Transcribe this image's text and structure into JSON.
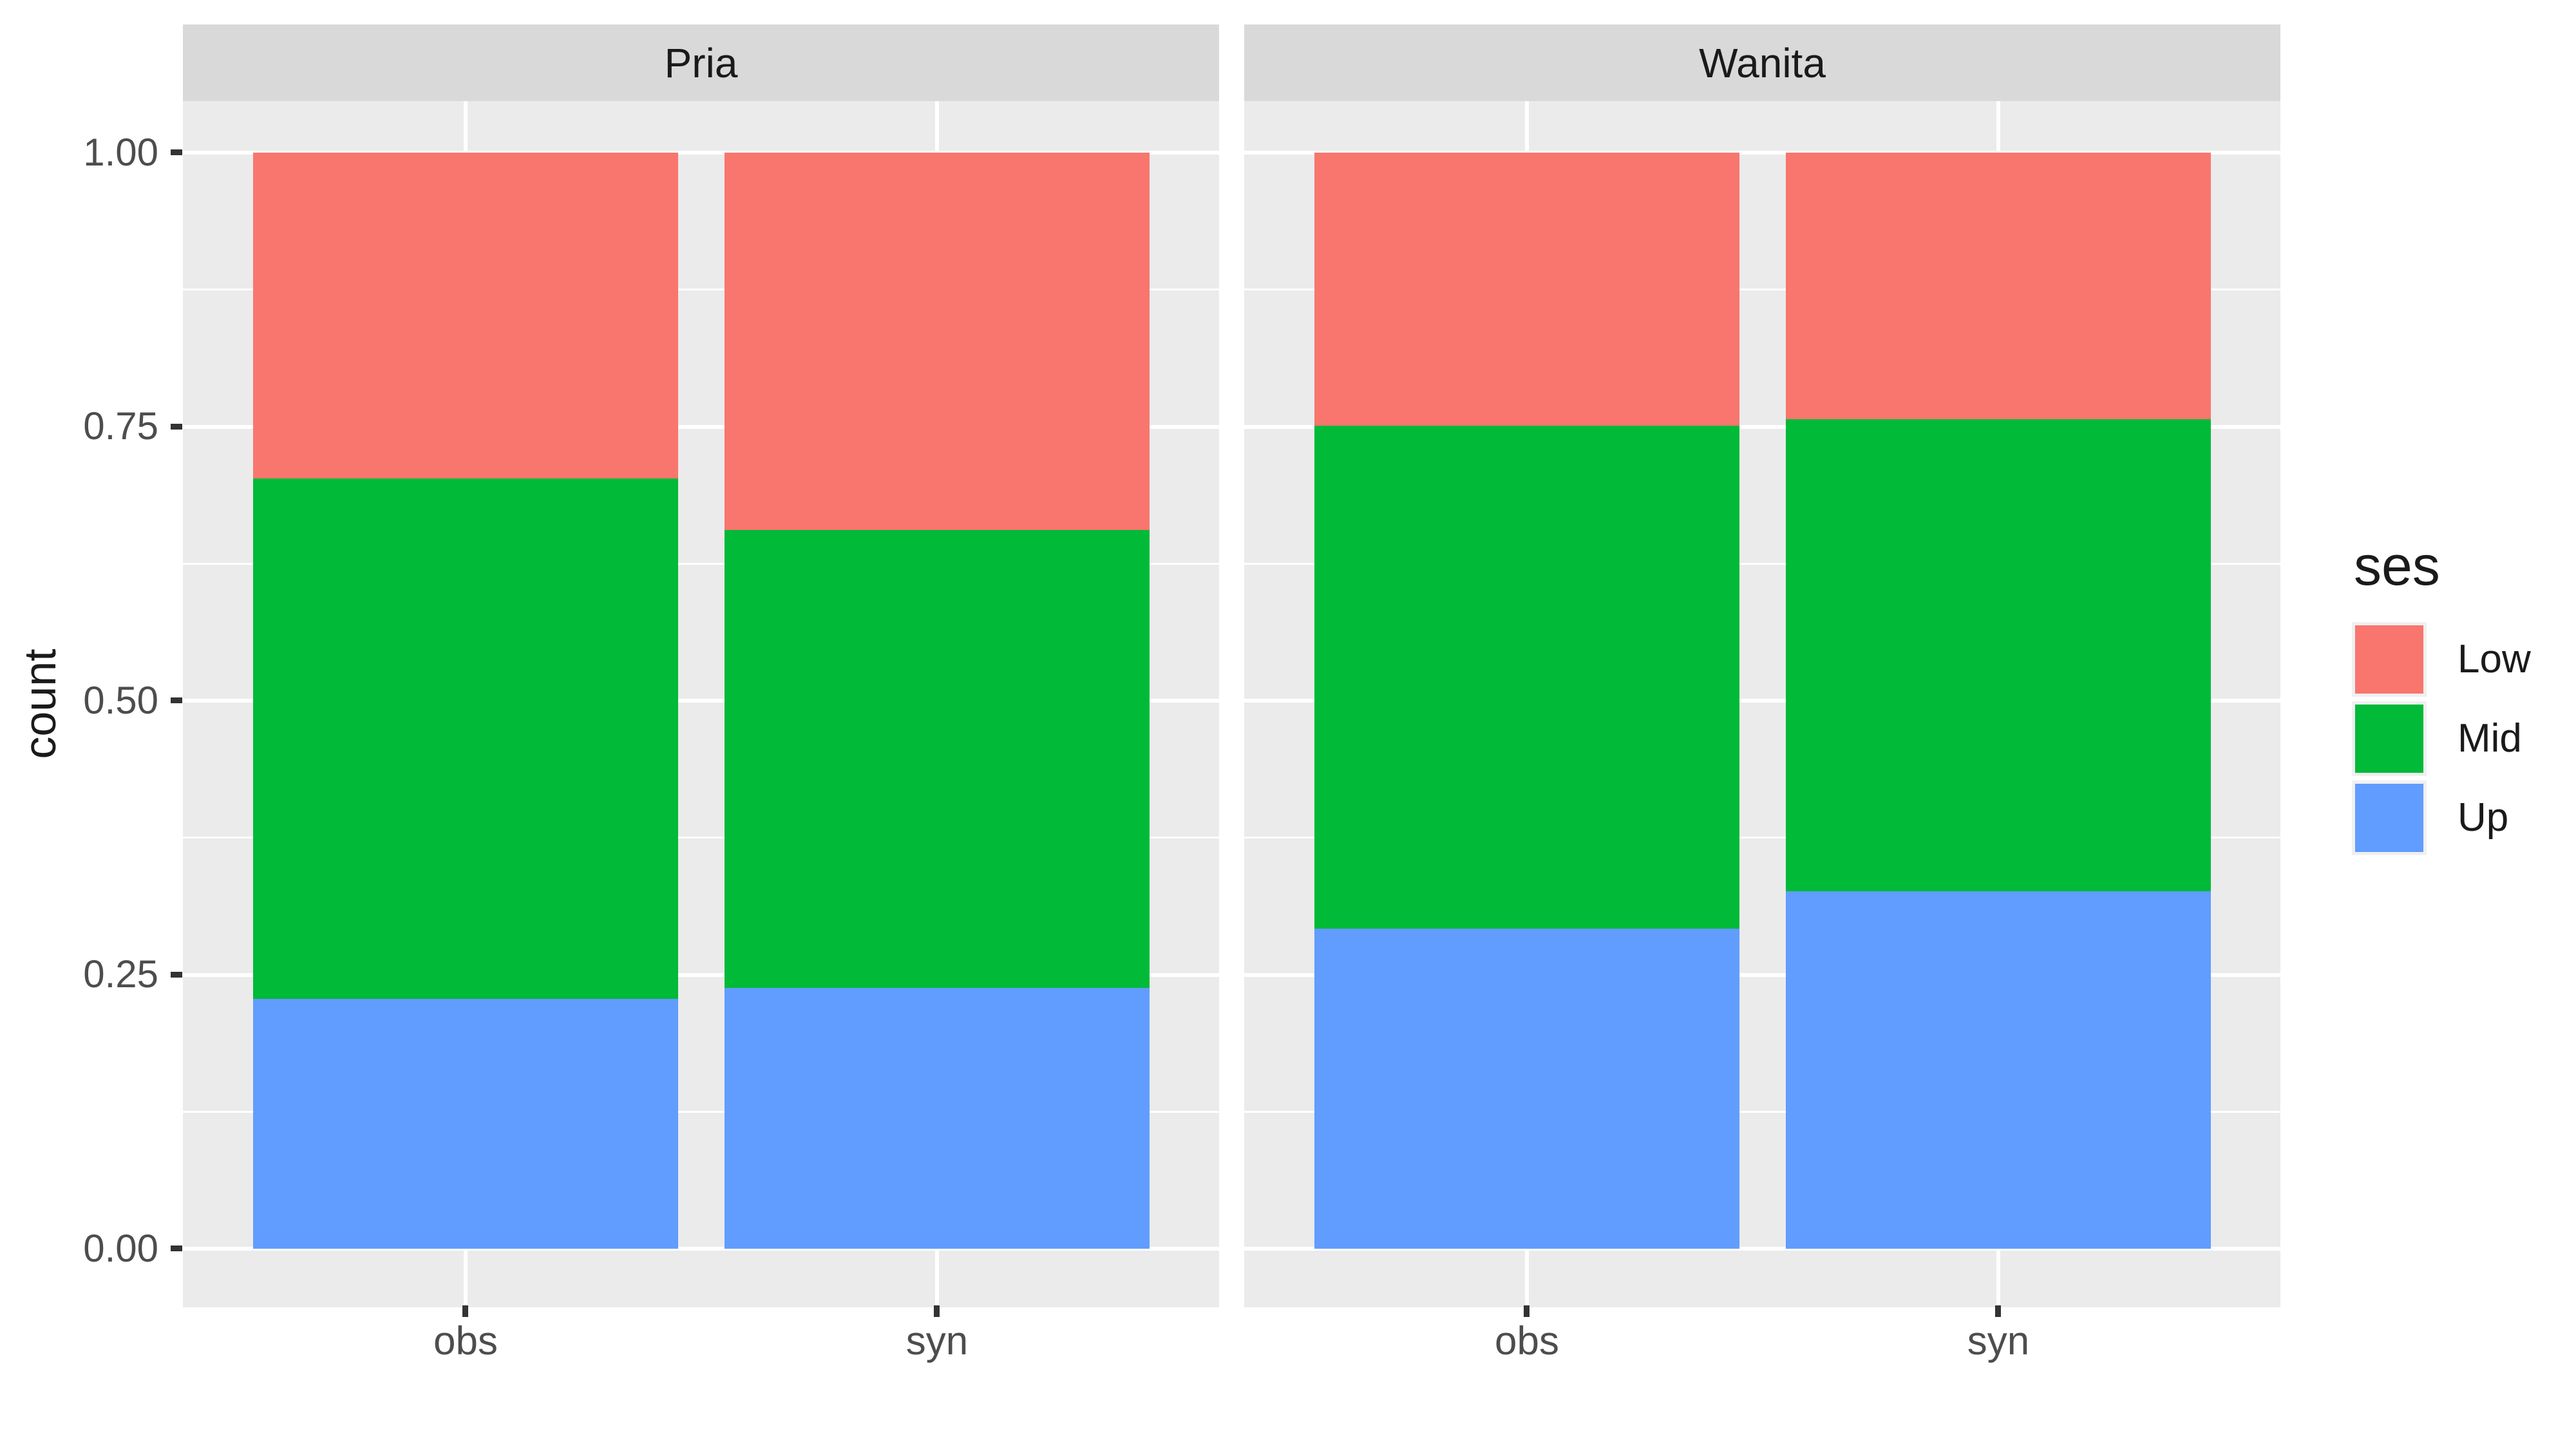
{
  "chart_data": {
    "type": "bar",
    "variant": "stacked-fill-100pct",
    "title": "",
    "xlabel": "",
    "ylabel": "count",
    "facet_variable_values": [
      "Pria",
      "Wanita"
    ],
    "categories": [
      "obs",
      "syn"
    ],
    "ylim": [
      0,
      1
    ],
    "y_tick_values": [
      1.0,
      0.75,
      0.5,
      0.25,
      0.0
    ],
    "y_tick_labels": [
      "1.00",
      "0.75",
      "0.50",
      "0.25",
      "0.00"
    ],
    "grid": {
      "major": true,
      "minor": true,
      "color": "#FFFFFF"
    },
    "stack_order_bottom_to_top": [
      "Up",
      "Mid",
      "Low"
    ],
    "values": {
      "Pria": {
        "obs": {
          "Up": 0.228,
          "Mid": 0.475,
          "Low": 0.297
        },
        "syn": {
          "Up": 0.238,
          "Mid": 0.418,
          "Low": 0.344
        }
      },
      "Wanita": {
        "obs": {
          "Up": 0.292,
          "Mid": 0.459,
          "Low": 0.249
        },
        "syn": {
          "Up": 0.326,
          "Mid": 0.431,
          "Low": 0.243
        }
      }
    },
    "cumulative_tops": {
      "Pria": {
        "obs": {
          "Up": 0.228,
          "Mid": 0.703,
          "Low": 1.0
        },
        "syn": {
          "Up": 0.238,
          "Mid": 0.656,
          "Low": 1.0
        }
      },
      "Wanita": {
        "obs": {
          "Up": 0.292,
          "Mid": 0.751,
          "Low": 1.0
        },
        "syn": {
          "Up": 0.326,
          "Mid": 0.757,
          "Low": 1.0
        }
      }
    },
    "legend": {
      "title": "ses",
      "position": "right",
      "entries": [
        {
          "label": "Low",
          "color": "#F8766D"
        },
        {
          "label": "Mid",
          "color": "#00BA38"
        },
        {
          "label": "Up",
          "color": "#619CFF"
        }
      ]
    }
  },
  "theme": {
    "panel_bg": "#EBEBEB",
    "strip_bg": "#D9D9D9",
    "legend_key_bg": "#F0F0F0",
    "grid_color": "#FFFFFF",
    "tick_mark_color": "#333333",
    "tick_label_color": "#4D4D4D",
    "text_color": "#1A1A1A"
  }
}
